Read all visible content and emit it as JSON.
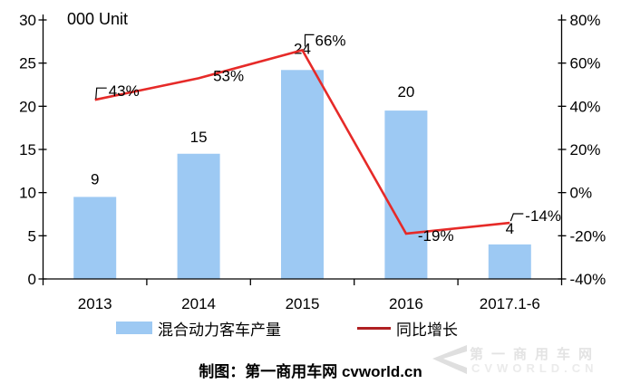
{
  "chart_data": {
    "type": "bar+line",
    "categories": [
      "2013",
      "2014",
      "2015",
      "2016",
      "2017.1-6"
    ],
    "series": [
      {
        "name": "混合动力客车产量",
        "type": "bar",
        "axis": "left",
        "values": [
          9,
          15,
          24,
          20,
          4
        ],
        "values_precise": [
          9.5,
          14.5,
          24.2,
          19.5,
          4.0
        ],
        "labels": [
          "9",
          "15",
          "24",
          "20",
          "4"
        ],
        "color": "#9dc9f3"
      },
      {
        "name": "同比增长",
        "type": "line",
        "axis": "right",
        "values": [
          43,
          53,
          66,
          -19,
          -14
        ],
        "labels": [
          "43%",
          "53%",
          "66%",
          "-19%",
          "-14%"
        ],
        "color": "#e62a28",
        "legend_color": "#b02022"
      }
    ],
    "left_axis": {
      "title": "000 Unit",
      "min": 0,
      "max": 30,
      "step": 5,
      "ticks": [
        "0",
        "5",
        "10",
        "15",
        "20",
        "25",
        "30"
      ]
    },
    "right_axis": {
      "min": -40,
      "max": 80,
      "step": 20,
      "ticks": [
        "-40%",
        "-20%",
        "0%",
        "20%",
        "40%",
        "60%",
        "80%"
      ]
    },
    "grid": false,
    "legend_position": "bottom",
    "axis_color": "#000000",
    "label_color": "#000000"
  },
  "footer": {
    "credit": "制图：第一商用车网 cvworld.cn"
  },
  "watermark": {
    "line1": "第一商用车网",
    "line2": "CVWORLD.CN"
  }
}
